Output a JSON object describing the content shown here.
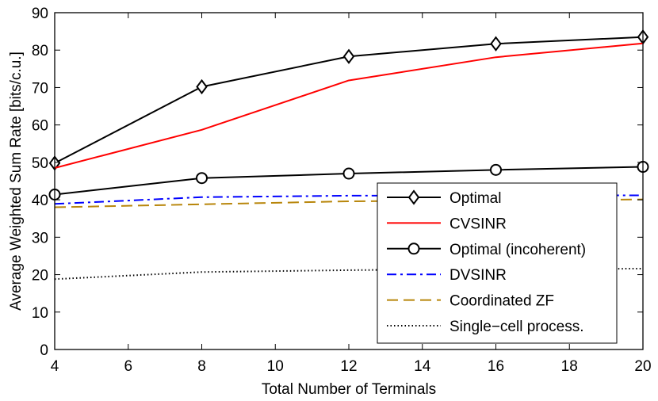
{
  "chart_data": {
    "type": "line",
    "title": "",
    "xlabel": "Total Number of Terminals",
    "ylabel": "Average Weighted Sum Rate [bits/c.u.]",
    "xlim": [
      4,
      20
    ],
    "ylim": [
      0,
      90
    ],
    "xticks": [
      4,
      6,
      8,
      10,
      12,
      14,
      16,
      18,
      20
    ],
    "yticks": [
      0,
      10,
      20,
      30,
      40,
      50,
      60,
      70,
      80,
      90
    ],
    "grid": false,
    "legend_position": "bottom-right",
    "x": [
      4,
      8,
      12,
      16,
      20
    ],
    "series": [
      {
        "name": "Optimal",
        "values": [
          49.8,
          70.2,
          78.3,
          81.7,
          83.5
        ],
        "color": "#000000",
        "dash": "solid",
        "marker": "diamond"
      },
      {
        "name": "CVSINR",
        "values": [
          48.5,
          58.7,
          71.9,
          78.1,
          81.8
        ],
        "color": "#ff0000",
        "dash": "solid",
        "marker": "none"
      },
      {
        "name": "Optimal (incoherent)",
        "values": [
          41.4,
          45.8,
          47.0,
          48.0,
          48.8
        ],
        "color": "#000000",
        "dash": "solid",
        "marker": "circle"
      },
      {
        "name": "DVSINR",
        "values": [
          38.9,
          40.7,
          41.1,
          41.1,
          41.2
        ],
        "color": "#0000ff",
        "dash": "dashdot",
        "marker": "none"
      },
      {
        "name": "Coordinated ZF",
        "values": [
          38.0,
          38.8,
          39.6,
          39.8,
          40.1
        ],
        "color": "#b8860b",
        "dash": "dashed",
        "marker": "none"
      },
      {
        "name": "Single−cell process.",
        "values": [
          18.8,
          20.7,
          21.2,
          21.5,
          21.6
        ],
        "color": "#000000",
        "dash": "dotted",
        "marker": "none"
      }
    ]
  }
}
